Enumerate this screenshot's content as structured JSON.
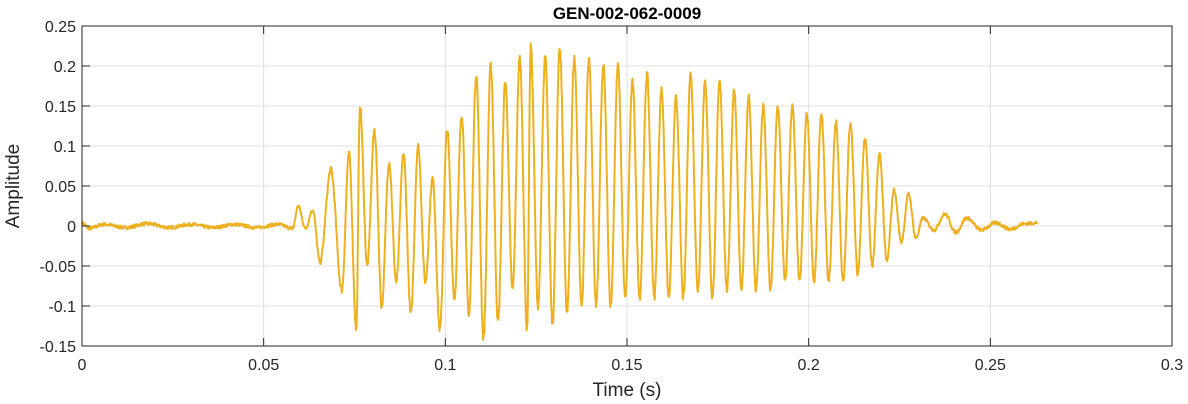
{
  "chart_data": {
    "type": "line",
    "title": "GEN-002-062-0009",
    "xlabel": "Time (s)",
    "ylabel": "Amplitude",
    "xlim": [
      0,
      0.3
    ],
    "ylim": [
      -0.15,
      0.25
    ],
    "xticks": [
      0,
      0.05,
      0.1,
      0.15,
      0.2,
      0.25,
      0.3
    ],
    "xtick_labels": [
      "0",
      "0.05",
      "0.1",
      "0.15",
      "0.2",
      "0.25",
      "0.3"
    ],
    "yticks": [
      -0.15,
      -0.1,
      -0.05,
      0,
      0.05,
      0.1,
      0.15,
      0.2,
      0.25
    ],
    "ytick_labels": [
      "-0.15",
      "-0.1",
      "-0.05",
      "0",
      "0.05",
      "0.1",
      "0.15",
      "0.2",
      "0.25"
    ],
    "grid": true,
    "line_color": "#EDB120",
    "series": [
      {
        "x_start": 0,
        "x_end": 0.263,
        "peaks": [
          [
            0.0,
            0.004
          ],
          [
            0.002,
            -0.003
          ],
          [
            0.006,
            0.002
          ],
          [
            0.012,
            -0.002
          ],
          [
            0.018,
            0.003
          ],
          [
            0.024,
            -0.002
          ],
          [
            0.03,
            0.002
          ],
          [
            0.036,
            -0.002
          ],
          [
            0.042,
            0.002
          ],
          [
            0.048,
            -0.002
          ],
          [
            0.054,
            0.002
          ],
          [
            0.058,
            -0.003
          ],
          [
            0.0595,
            0.025
          ],
          [
            0.0615,
            -0.003
          ],
          [
            0.0635,
            0.02
          ],
          [
            0.0655,
            -0.045
          ],
          [
            0.0685,
            0.07
          ],
          [
            0.0715,
            -0.08
          ],
          [
            0.0735,
            0.09
          ],
          [
            0.0755,
            -0.13
          ],
          [
            0.0765,
            0.15
          ],
          [
            0.0785,
            -0.05
          ],
          [
            0.0805,
            0.12
          ],
          [
            0.0825,
            -0.1
          ],
          [
            0.0845,
            0.08
          ],
          [
            0.0865,
            -0.07
          ],
          [
            0.0885,
            0.09
          ],
          [
            0.0905,
            -0.11
          ],
          [
            0.0925,
            0.1
          ],
          [
            0.0945,
            -0.07
          ],
          [
            0.0965,
            0.06
          ],
          [
            0.0985,
            -0.13
          ],
          [
            0.1005,
            0.12
          ],
          [
            0.1025,
            -0.09
          ],
          [
            0.1045,
            0.14
          ],
          [
            0.1065,
            -0.11
          ],
          [
            0.1085,
            0.19
          ],
          [
            0.1105,
            -0.14
          ],
          [
            0.1125,
            0.2
          ],
          [
            0.1145,
            -0.12
          ],
          [
            0.1165,
            0.18
          ],
          [
            0.1185,
            -0.08
          ],
          [
            0.1205,
            0.21
          ],
          [
            0.1225,
            -0.13
          ],
          [
            0.1235,
            0.225
          ],
          [
            0.1255,
            -0.1
          ],
          [
            0.1275,
            0.21
          ],
          [
            0.1295,
            -0.12
          ],
          [
            0.1315,
            0.22
          ],
          [
            0.1335,
            -0.11
          ],
          [
            0.1355,
            0.21
          ],
          [
            0.1375,
            -0.1
          ],
          [
            0.1395,
            0.21
          ],
          [
            0.1415,
            -0.1
          ],
          [
            0.1435,
            0.2
          ],
          [
            0.1455,
            -0.1
          ],
          [
            0.1475,
            0.2
          ],
          [
            0.1495,
            -0.09
          ],
          [
            0.1515,
            0.18
          ],
          [
            0.1535,
            -0.09
          ],
          [
            0.1555,
            0.19
          ],
          [
            0.1575,
            -0.09
          ],
          [
            0.1595,
            0.17
          ],
          [
            0.1615,
            -0.09
          ],
          [
            0.1635,
            0.16
          ],
          [
            0.1655,
            -0.09
          ],
          [
            0.1675,
            0.19
          ],
          [
            0.1695,
            -0.08
          ],
          [
            0.1715,
            0.18
          ],
          [
            0.1735,
            -0.09
          ],
          [
            0.1755,
            0.18
          ],
          [
            0.1775,
            -0.08
          ],
          [
            0.1795,
            0.17
          ],
          [
            0.1815,
            -0.08
          ],
          [
            0.1835,
            0.16
          ],
          [
            0.1855,
            -0.08
          ],
          [
            0.1875,
            0.15
          ],
          [
            0.1895,
            -0.08
          ],
          [
            0.1915,
            0.15
          ],
          [
            0.1935,
            -0.07
          ],
          [
            0.1955,
            0.15
          ],
          [
            0.1975,
            -0.07
          ],
          [
            0.1995,
            0.14
          ],
          [
            0.2015,
            -0.07
          ],
          [
            0.2035,
            0.14
          ],
          [
            0.2055,
            -0.07
          ],
          [
            0.2075,
            0.13
          ],
          [
            0.2095,
            -0.07
          ],
          [
            0.2115,
            0.13
          ],
          [
            0.2135,
            -0.06
          ],
          [
            0.2155,
            0.11
          ],
          [
            0.2175,
            -0.05
          ],
          [
            0.2195,
            0.09
          ],
          [
            0.2215,
            -0.045
          ],
          [
            0.2235,
            0.045
          ],
          [
            0.2255,
            -0.02
          ],
          [
            0.2275,
            0.04
          ],
          [
            0.2295,
            -0.015
          ],
          [
            0.2315,
            0.01
          ],
          [
            0.2345,
            -0.005
          ],
          [
            0.2375,
            0.015
          ],
          [
            0.2405,
            -0.008
          ],
          [
            0.2435,
            0.01
          ],
          [
            0.2475,
            -0.005
          ],
          [
            0.2515,
            0.004
          ],
          [
            0.2555,
            -0.004
          ],
          [
            0.2595,
            0.003
          ],
          [
            0.263,
            0.004
          ]
        ]
      }
    ]
  }
}
